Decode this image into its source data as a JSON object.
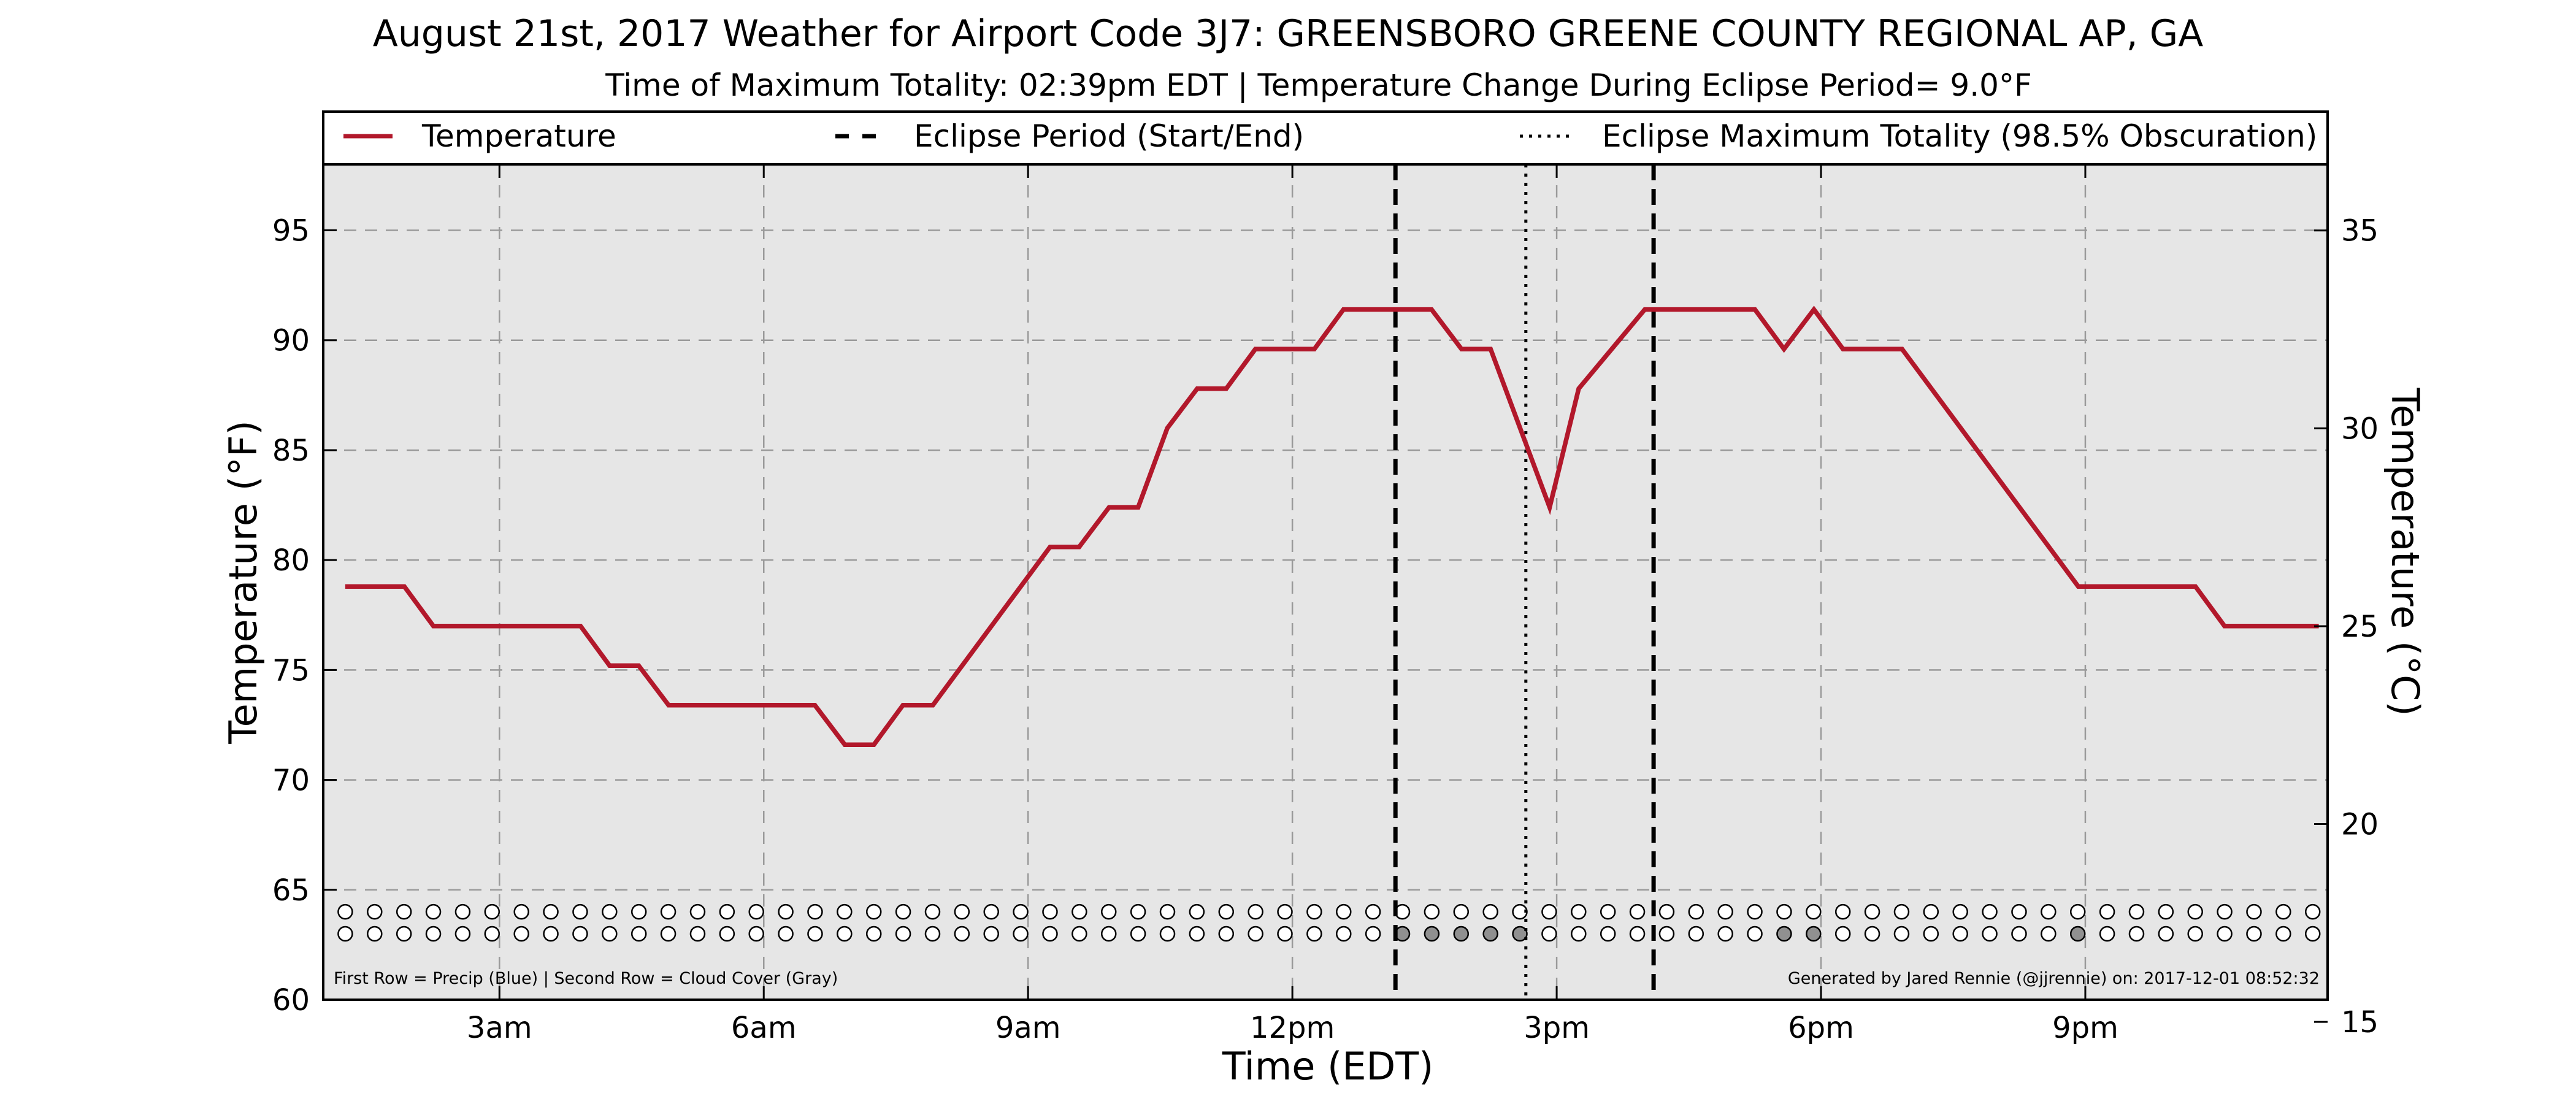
{
  "chart_data": {
    "type": "line",
    "title": "August 21st, 2017 Weather for Airport Code 3J7: GREENSBORO GREENE COUNTY REGIONAL AP, GA",
    "subtitle": "Time of Maximum Totality: 02:39pm EDT | Temperature Change During Eclipse Period= 9.0°F",
    "xlabel": "Time (EDT)",
    "ylabel": "Temperature (°F)",
    "ylabel_right": "Temperature (°C)",
    "xlim": [
      1.0,
      23.75
    ],
    "ylim": [
      60,
      98
    ],
    "ylim_right": [
      15.56,
      36.67
    ],
    "grid": true,
    "legend_position": "top",
    "x_ticks": [
      {
        "value": 3,
        "label": "3am"
      },
      {
        "value": 6,
        "label": "6am"
      },
      {
        "value": 9,
        "label": "9am"
      },
      {
        "value": 12,
        "label": "12pm"
      },
      {
        "value": 15,
        "label": "3pm"
      },
      {
        "value": 18,
        "label": "6pm"
      },
      {
        "value": 21,
        "label": "9pm"
      }
    ],
    "y_ticks": [
      {
        "value": 60,
        "label": "60"
      },
      {
        "value": 65,
        "label": "65"
      },
      {
        "value": 70,
        "label": "70"
      },
      {
        "value": 75,
        "label": "75"
      },
      {
        "value": 80,
        "label": "80"
      },
      {
        "value": 85,
        "label": "85"
      },
      {
        "value": 90,
        "label": "90"
      },
      {
        "value": 95,
        "label": "95"
      }
    ],
    "y_ticks_right": [
      {
        "value": 15,
        "label": "15"
      },
      {
        "value": 20,
        "label": "20"
      },
      {
        "value": 25,
        "label": "25"
      },
      {
        "value": 30,
        "label": "30"
      },
      {
        "value": 35,
        "label": "35"
      }
    ],
    "legend": [
      {
        "label": "Temperature",
        "style": "solid",
        "color": "#b2182b"
      },
      {
        "label": "Eclipse Period (Start/End)",
        "style": "dashed",
        "color": "#000000"
      },
      {
        "label": "Eclipse Maximum Totality (98.5% Obscuration)",
        "style": "dotted",
        "color": "#000000"
      }
    ],
    "series": [
      {
        "color": "#b2182b",
        "x": [
          1.25,
          1.92,
          2.25,
          3.92,
          4.25,
          4.58,
          4.92,
          6.58,
          6.92,
          7.25,
          7.58,
          7.92,
          9.25,
          9.58,
          9.92,
          10.25,
          10.58,
          10.92,
          11.25,
          11.58,
          11.92,
          12.25,
          12.58,
          13.25,
          13.58,
          13.92,
          14.25,
          14.92,
          15.25,
          16.0,
          16.25,
          17.25,
          17.58,
          17.92,
          18.25,
          18.92,
          20.92,
          21.25,
          22.25,
          22.58,
          23.25,
          23.65
        ],
        "y": [
          78.8,
          78.8,
          77.0,
          77.0,
          75.2,
          75.2,
          73.4,
          73.4,
          71.6,
          71.6,
          73.4,
          73.4,
          80.6,
          80.6,
          82.4,
          82.4,
          86.0,
          87.8,
          87.8,
          89.6,
          89.6,
          89.6,
          91.4,
          91.4,
          91.4,
          89.6,
          89.6,
          82.4,
          87.8,
          91.4,
          91.4,
          91.4,
          89.6,
          91.4,
          89.6,
          89.6,
          78.8,
          78.8,
          78.8,
          77.0,
          77.0,
          77.0
        ]
      }
    ],
    "eclipse_start": 13.17,
    "eclipse_end": 16.1,
    "max_totality": 14.65,
    "circle_rows": {
      "count": 68,
      "x_start": 1.25,
      "x_step": 0.3333,
      "row1_y": 64.0,
      "row2_y": 63.0,
      "row1_filled": [],
      "row2_filled": [
        36,
        37,
        38,
        39,
        40,
        49,
        50,
        59
      ],
      "filled_color": "#909090"
    },
    "annotation_left": "First Row = Precip (Blue) | Second Row = Cloud Cover (Gray)",
    "annotation_right": "Generated by Jared Rennie (@jjrennie) on: 2017-12-01 08:52:32"
  }
}
